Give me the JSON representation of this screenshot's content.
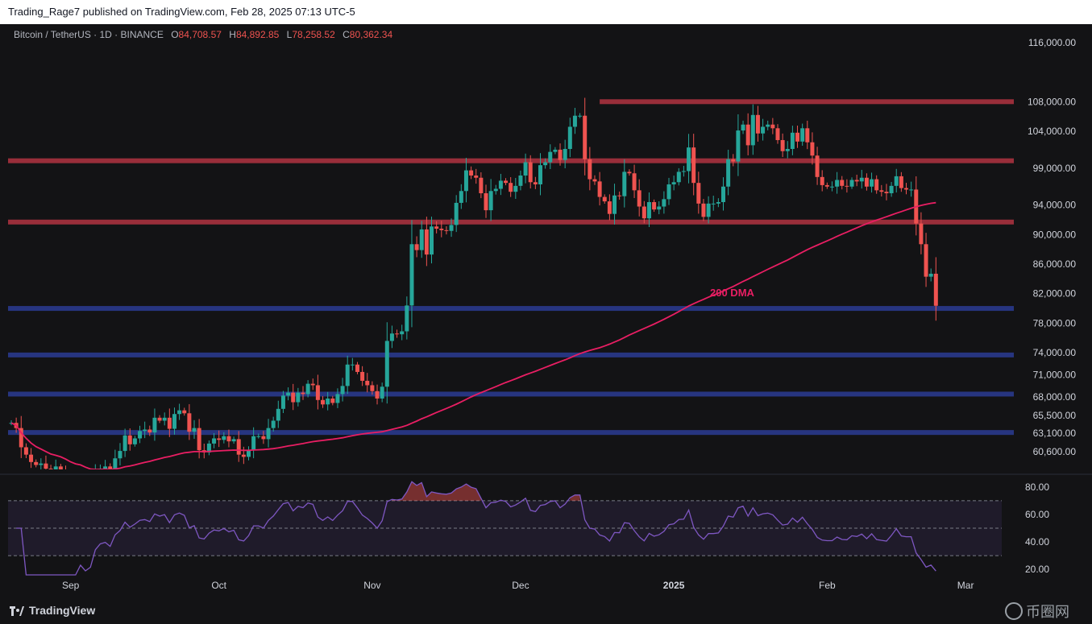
{
  "header": {
    "publisher_line": "Trading_Rage7 published on TradingView.com, Feb 28, 2025 07:13 UTC-5"
  },
  "symbol": {
    "name": "Bitcoin / TetherUS · 1D · BINANCE",
    "open_label": "O",
    "open": "84,708.57",
    "high_label": "H",
    "high": "84,892.85",
    "low_label": "L",
    "low": "78,258.52",
    "close_label": "C",
    "close": "80,362.34"
  },
  "footer": {
    "brand": "TradingView",
    "watermark": "币圈网"
  },
  "colors": {
    "up": "#26a69a",
    "down": "#ef5350",
    "resistance": "#a8323e",
    "support": "#2a3a8c",
    "dma": "#e91e63",
    "rsi": "#7e57c2"
  },
  "chart_data": [
    {
      "type": "candlestick",
      "title": "",
      "annotation": "200 DMA",
      "yticks": [
        116000,
        108000,
        104000,
        99000,
        94000,
        90000,
        86000,
        82000,
        78000,
        74000,
        71000,
        68000,
        65500,
        63100,
        60600
      ],
      "ytick_labels": [
        "116,000.00",
        "108,000.00",
        "104,000.00",
        "99,000.00",
        "94,000.00",
        "90,000.00",
        "86,000.00",
        "82,000.00",
        "78,000.00",
        "74,000.00",
        "71,000.00",
        "68,000.00",
        "65,500.00",
        "63,100.00",
        "60,600.00"
      ],
      "ylim": [
        58200,
        118500
      ],
      "xticks": [
        {
          "label": "Sep",
          "date": "2024-09-01"
        },
        {
          "label": "Oct",
          "date": "2024-10-01"
        },
        {
          "label": "Nov",
          "date": "2024-11-01"
        },
        {
          "label": "Dec",
          "date": "2024-12-01"
        },
        {
          "label": "2025",
          "date": "2025-01-01"
        },
        {
          "label": "Feb",
          "date": "2025-02-01"
        },
        {
          "label": "Mar",
          "date": "2025-03-01"
        }
      ],
      "start_date": "2024-08-20",
      "end_date": "2025-02-28",
      "levels": [
        {
          "price": 108000,
          "kind": "resistance",
          "from": "2024-12-17"
        },
        {
          "price": 100000,
          "kind": "resistance"
        },
        {
          "price": 91700,
          "kind": "resistance"
        },
        {
          "price": 80000,
          "kind": "support"
        },
        {
          "price": 73700,
          "kind": "support"
        },
        {
          "price": 68400,
          "kind": "support"
        },
        {
          "price": 63200,
          "kind": "support"
        }
      ],
      "closes": [
        64500,
        63800,
        61200,
        60200,
        59200,
        58800,
        59000,
        58300,
        57500,
        58600,
        57800,
        56200,
        54800,
        55400,
        56800,
        53900,
        54400,
        57200,
        58300,
        58600,
        57400,
        59700,
        60700,
        62800,
        61600,
        62400,
        63400,
        63600,
        63200,
        65200,
        64800,
        65200,
        63700,
        65700,
        66200,
        65800,
        63300,
        63800,
        60800,
        60500,
        61700,
        62400,
        62200,
        62700,
        62000,
        62300,
        60200,
        59900,
        60800,
        62700,
        62700,
        62300,
        63800,
        64800,
        66400,
        68200,
        68600,
        67300,
        68600,
        68400,
        69800,
        69600,
        67600,
        67000,
        67800,
        67200,
        68400,
        69500,
        72400,
        72400,
        71400,
        70200,
        69600,
        68800,
        67800,
        69400,
        75600,
        76600,
        76500,
        76900,
        80400,
        88700,
        87900,
        90700,
        87300,
        91100,
        90800,
        90600,
        90500,
        91300,
        94300,
        95900,
        98700,
        98000,
        97700,
        95600,
        93300,
        95900,
        96200,
        97300,
        97000,
        95800,
        96600,
        98000,
        99800,
        97100,
        96800,
        99400,
        99800,
        101200,
        101500,
        100100,
        101600,
        104600,
        106100,
        106100,
        100200,
        97500,
        97200,
        95100,
        94500,
        92800,
        95300,
        95200,
        98500,
        98300,
        96000,
        93800,
        92200,
        94400,
        93400,
        93800,
        94800,
        96800,
        97100,
        98500,
        98600,
        101800,
        97000,
        94200,
        92400,
        94200,
        94200,
        94400,
        96500,
        100200,
        99900,
        104100,
        104900,
        102100,
        106200,
        103700,
        104600,
        104900,
        104400,
        102800,
        101300,
        101600,
        103800,
        102600,
        104400,
        102500,
        100700,
        97800,
        96700,
        96500,
        96500,
        97400,
        96600,
        96500,
        97400,
        97200,
        97700,
        96500,
        97500,
        96000,
        95800,
        95600,
        96600,
        97900,
        96300,
        96100,
        96100,
        91500,
        88700,
        84300,
        84700,
        80360
      ],
      "rsi": {
        "yticks": [
          80,
          60,
          40,
          20
        ],
        "ytick_labels": [
          "80.00",
          "60.00",
          "40.00",
          "20.00"
        ],
        "ylim": [
          16,
          84
        ],
        "overbought": 70,
        "mid": 50,
        "oversold": 30,
        "last": 22
      }
    }
  ]
}
